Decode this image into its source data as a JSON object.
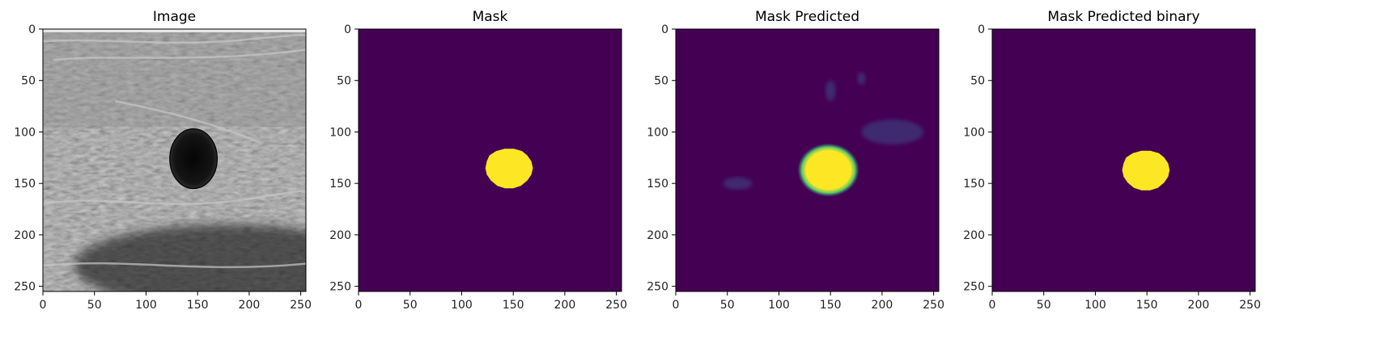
{
  "panels": [
    {
      "title": "Image",
      "kind": "ultrasound"
    },
    {
      "title": "Mask",
      "kind": "mask"
    },
    {
      "title": "Mask Predicted",
      "kind": "prediction"
    },
    {
      "title": "Mask Predicted binary",
      "kind": "binary"
    }
  ],
  "axis": {
    "xticks": [
      "0",
      "50",
      "100",
      "150",
      "200",
      "250"
    ],
    "yticks": [
      "0",
      "50",
      "100",
      "150",
      "200",
      "250"
    ],
    "tick_values": [
      0,
      50,
      100,
      150,
      200,
      250
    ],
    "range": [
      0,
      255
    ]
  },
  "colors": {
    "viridis_dark": "#440154",
    "viridis_yellow": "#fde725",
    "viridis_green": "#2fb47c",
    "viridis_teal": "#21918c",
    "ultrasound_dark": "#1a1a1a",
    "ultrasound_mid": "#7a7a7a",
    "ultrasound_light": "#c8c8c8"
  }
}
